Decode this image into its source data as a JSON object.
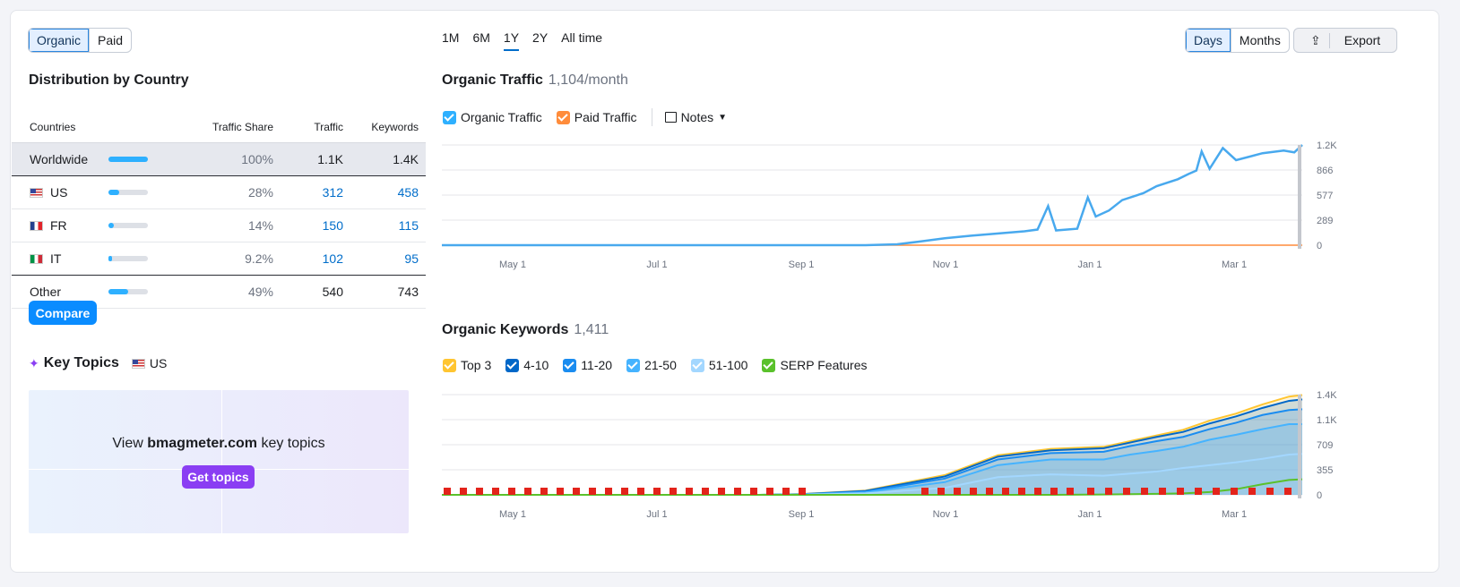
{
  "tabs": {
    "organic": "Organic",
    "paid": "Paid"
  },
  "distribution": {
    "title": "Distribution by Country",
    "headers": [
      "Countries",
      "Traffic Share",
      "Traffic",
      "Keywords"
    ],
    "rows": [
      {
        "name": "Worldwide",
        "share": "100%",
        "share_value": 1.0,
        "traffic": "1.1K",
        "keywords": "1.4K"
      },
      {
        "name": "US",
        "share": "28%",
        "share_value": 0.28,
        "traffic": "312",
        "keywords": "458"
      },
      {
        "name": "FR",
        "share": "14%",
        "share_value": 0.14,
        "traffic": "150",
        "keywords": "115"
      },
      {
        "name": "IT",
        "share": "9.2%",
        "share_value": 0.092,
        "traffic": "102",
        "keywords": "95"
      },
      {
        "name": "Other",
        "share": "49%",
        "share_value": 0.49,
        "traffic": "540",
        "keywords": "743"
      }
    ],
    "compare_label": "Compare"
  },
  "key_topics": {
    "title": "Key Topics",
    "country": "US",
    "view_prefix": "View",
    "domain": "bmagmeter.com",
    "view_suffix": "key topics",
    "button": "Get topics"
  },
  "periods": [
    "1M",
    "6M",
    "1Y",
    "2Y",
    "All time"
  ],
  "active_period": "1Y",
  "granularity": {
    "days": "Days",
    "months": "Months"
  },
  "export_label": "Export",
  "traffic": {
    "title": "Organic Traffic",
    "subtitle": "1,104/month",
    "legend": [
      {
        "label": "Organic Traffic",
        "color": "#2eb0ff"
      },
      {
        "label": "Paid Traffic",
        "color": "#ff8c3b"
      }
    ],
    "notes_label": "Notes"
  },
  "keywords": {
    "title": "Organic Keywords",
    "subtitle": "1,411",
    "legend": [
      {
        "label": "Top 3",
        "color": "#ffc531"
      },
      {
        "label": "4-10",
        "color": "#0067c8"
      },
      {
        "label": "11-20",
        "color": "#1a8cf0"
      },
      {
        "label": "21-50",
        "color": "#45b3ff"
      },
      {
        "label": "51-100",
        "color": "#a3d7ff"
      },
      {
        "label": "SERP Features",
        "color": "#5ac12b"
      }
    ]
  },
  "chart_data": [
    {
      "type": "line",
      "title": "Organic Traffic",
      "x_ticks": [
        "May 1",
        "Jul 1",
        "Sep 1",
        "Nov 1",
        "Jan 1",
        "Mar 1"
      ],
      "y_ticks": [
        "0",
        "289",
        "577",
        "866",
        "1.2K"
      ],
      "ylim": [
        0,
        1155
      ],
      "x": [
        0,
        20,
        40,
        60,
        80,
        100,
        120,
        140,
        160,
        172,
        180,
        190,
        200,
        220,
        225,
        229,
        232,
        240,
        244,
        247,
        252,
        257,
        265,
        270,
        278,
        282,
        285,
        287,
        290,
        295,
        300,
        310,
        318,
        322,
        325
      ],
      "series": [
        {
          "name": "Organic Traffic",
          "values": [
            0,
            0,
            0,
            0,
            0,
            0,
            0,
            0,
            0,
            10,
            40,
            80,
            110,
            160,
            180,
            450,
            170,
            190,
            550,
            330,
            400,
            520,
            600,
            680,
            760,
            820,
            860,
            1080,
            880,
            1120,
            980,
            1060,
            1090,
            1070,
            1155
          ]
        },
        {
          "name": "Paid Traffic",
          "values": [
            0,
            0,
            0,
            0,
            0,
            0,
            0,
            0,
            0,
            0,
            0,
            0,
            0,
            0,
            0,
            0,
            0,
            0,
            0,
            0,
            0,
            0,
            0,
            0,
            0,
            0,
            0,
            0,
            0,
            0,
            0,
            0,
            0,
            0,
            0
          ]
        }
      ]
    },
    {
      "type": "area",
      "title": "Organic Keywords",
      "x_ticks": [
        "May 1",
        "Jul 1",
        "Sep 1",
        "Nov 1",
        "Jan 1",
        "Mar 1"
      ],
      "y_ticks": [
        "0",
        "355",
        "709",
        "1.1K",
        "1.4K"
      ],
      "ylim": [
        0,
        1418
      ],
      "x": [
        0,
        40,
        80,
        120,
        135,
        160,
        190,
        210,
        230,
        250,
        260,
        270,
        280,
        290,
        300,
        310,
        320,
        325
      ],
      "series": [
        {
          "name": "Top 3",
          "values": [
            0,
            0,
            0,
            0,
            10,
            60,
            280,
            560,
            650,
            680,
            760,
            840,
            920,
            1050,
            1150,
            1280,
            1390,
            1411
          ]
        },
        {
          "name": "4-10",
          "values": [
            0,
            0,
            0,
            0,
            8,
            55,
            260,
            540,
            630,
            660,
            740,
            820,
            890,
            1010,
            1110,
            1230,
            1330,
            1350
          ]
        },
        {
          "name": "11-20",
          "values": [
            0,
            0,
            0,
            0,
            6,
            45,
            230,
            500,
            590,
            610,
            690,
            760,
            820,
            930,
            1020,
            1130,
            1200,
            1210
          ]
        },
        {
          "name": "21-50",
          "values": [
            0,
            0,
            0,
            0,
            4,
            35,
            180,
            420,
            500,
            500,
            570,
            620,
            680,
            780,
            850,
            930,
            1000,
            1000
          ]
        },
        {
          "name": "51-100",
          "values": [
            0,
            0,
            0,
            0,
            2,
            20,
            100,
            250,
            290,
            270,
            300,
            330,
            380,
            420,
            460,
            510,
            570,
            580
          ]
        },
        {
          "name": "SERP Features",
          "values": [
            0,
            0,
            0,
            0,
            0,
            0,
            0,
            0,
            0,
            5,
            10,
            15,
            20,
            40,
            80,
            150,
            210,
            220
          ]
        }
      ]
    }
  ]
}
